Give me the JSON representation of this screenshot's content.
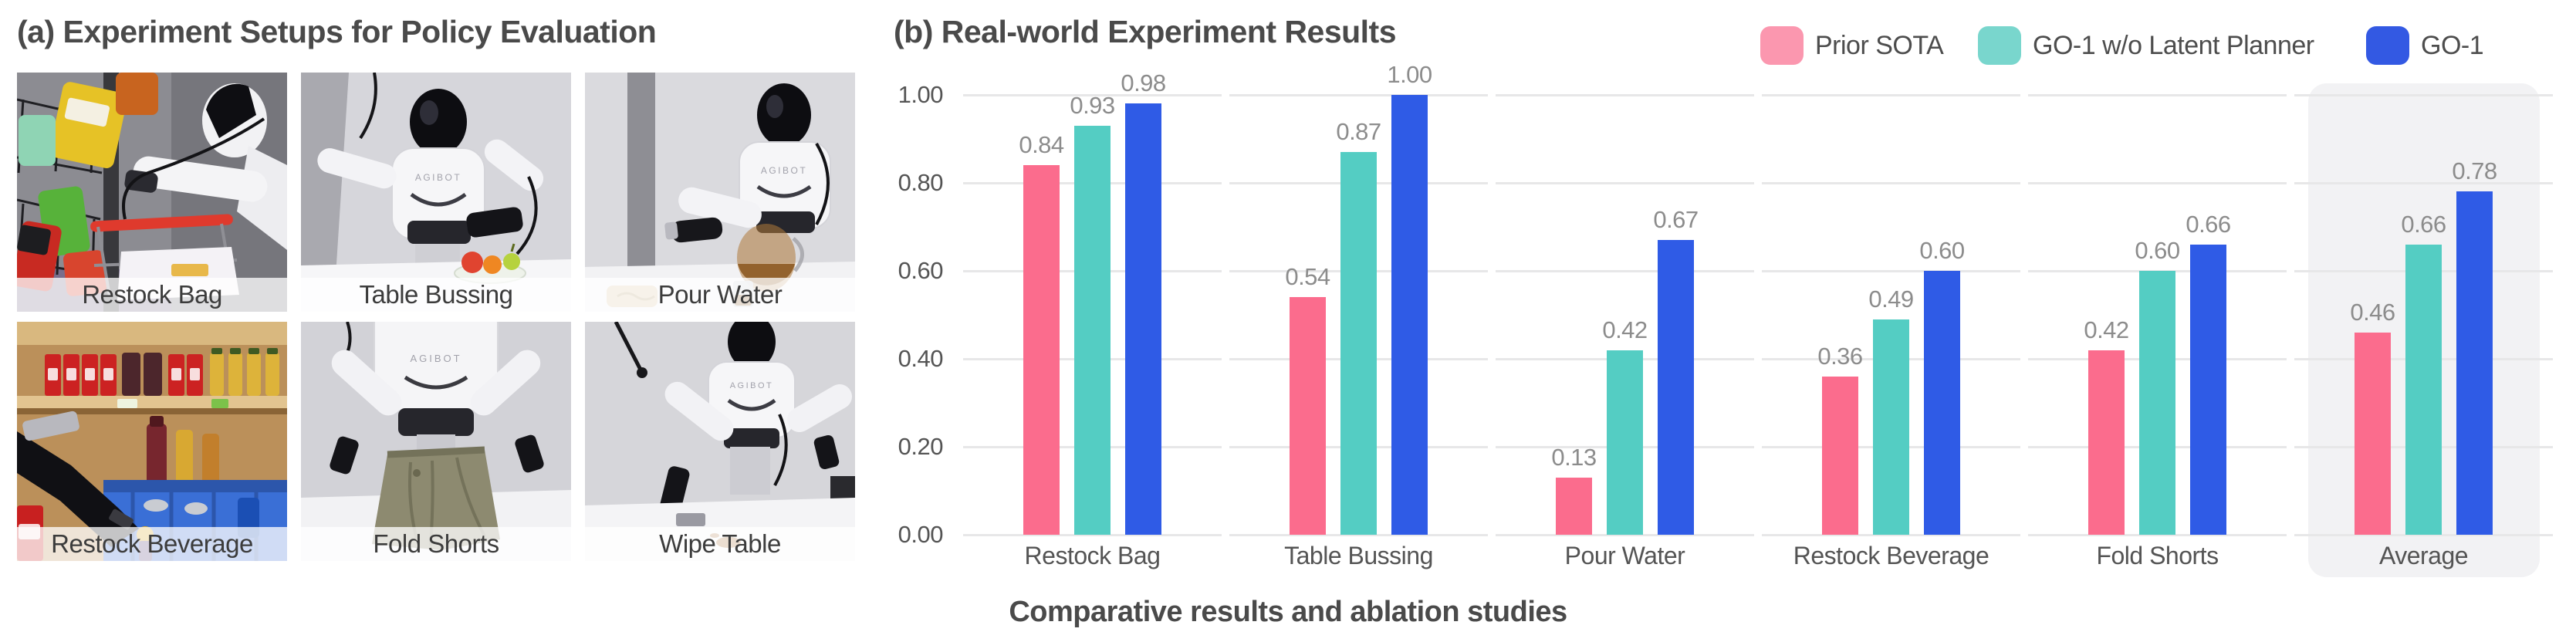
{
  "panel_a": {
    "title": "(a) Experiment Setups for Policy Evaluation",
    "robot_logo": "AGIBOT",
    "tiles": [
      {
        "label": "Restock Bag"
      },
      {
        "label": "Table Bussing"
      },
      {
        "label": "Pour Water"
      },
      {
        "label": "Restock Beverage"
      },
      {
        "label": "Fold Shorts"
      },
      {
        "label": "Wipe Table"
      }
    ]
  },
  "panel_b": {
    "title": "(b) Real-world Experiment Results",
    "caption": "Comparative results and ablation studies"
  },
  "chart_data": {
    "type": "bar",
    "title": "(b) Real-world Experiment Results",
    "xlabel": "",
    "ylabel": "",
    "ylim": [
      0.0,
      1.0
    ],
    "y_ticks": [
      "1.00",
      "0.80",
      "0.60",
      "0.40",
      "0.20",
      "0.00"
    ],
    "grid": true,
    "legend_position": "top-right",
    "highlighted_category": "Average",
    "categories": [
      "Restock Bag",
      "Table Bussing",
      "Pour Water",
      "Restock Beverage",
      "Fold Shorts",
      "Average"
    ],
    "series": [
      {
        "name": "Prior SOTA",
        "color": "#FB6C8D",
        "legend_color": "#FB97AF",
        "values": [
          0.84,
          0.54,
          0.13,
          0.36,
          0.42,
          0.46
        ]
      },
      {
        "name": "GO-1 w/o Latent Planner",
        "color": "#54CDC3",
        "legend_color": "#79D6CD",
        "values": [
          0.93,
          0.87,
          0.42,
          0.49,
          0.6,
          0.66
        ]
      },
      {
        "name": "GO-1",
        "color": "#2F5BE6",
        "legend_color": "#3359E3",
        "values": [
          0.98,
          1.0,
          0.67,
          0.6,
          0.66,
          0.78
        ]
      }
    ]
  }
}
